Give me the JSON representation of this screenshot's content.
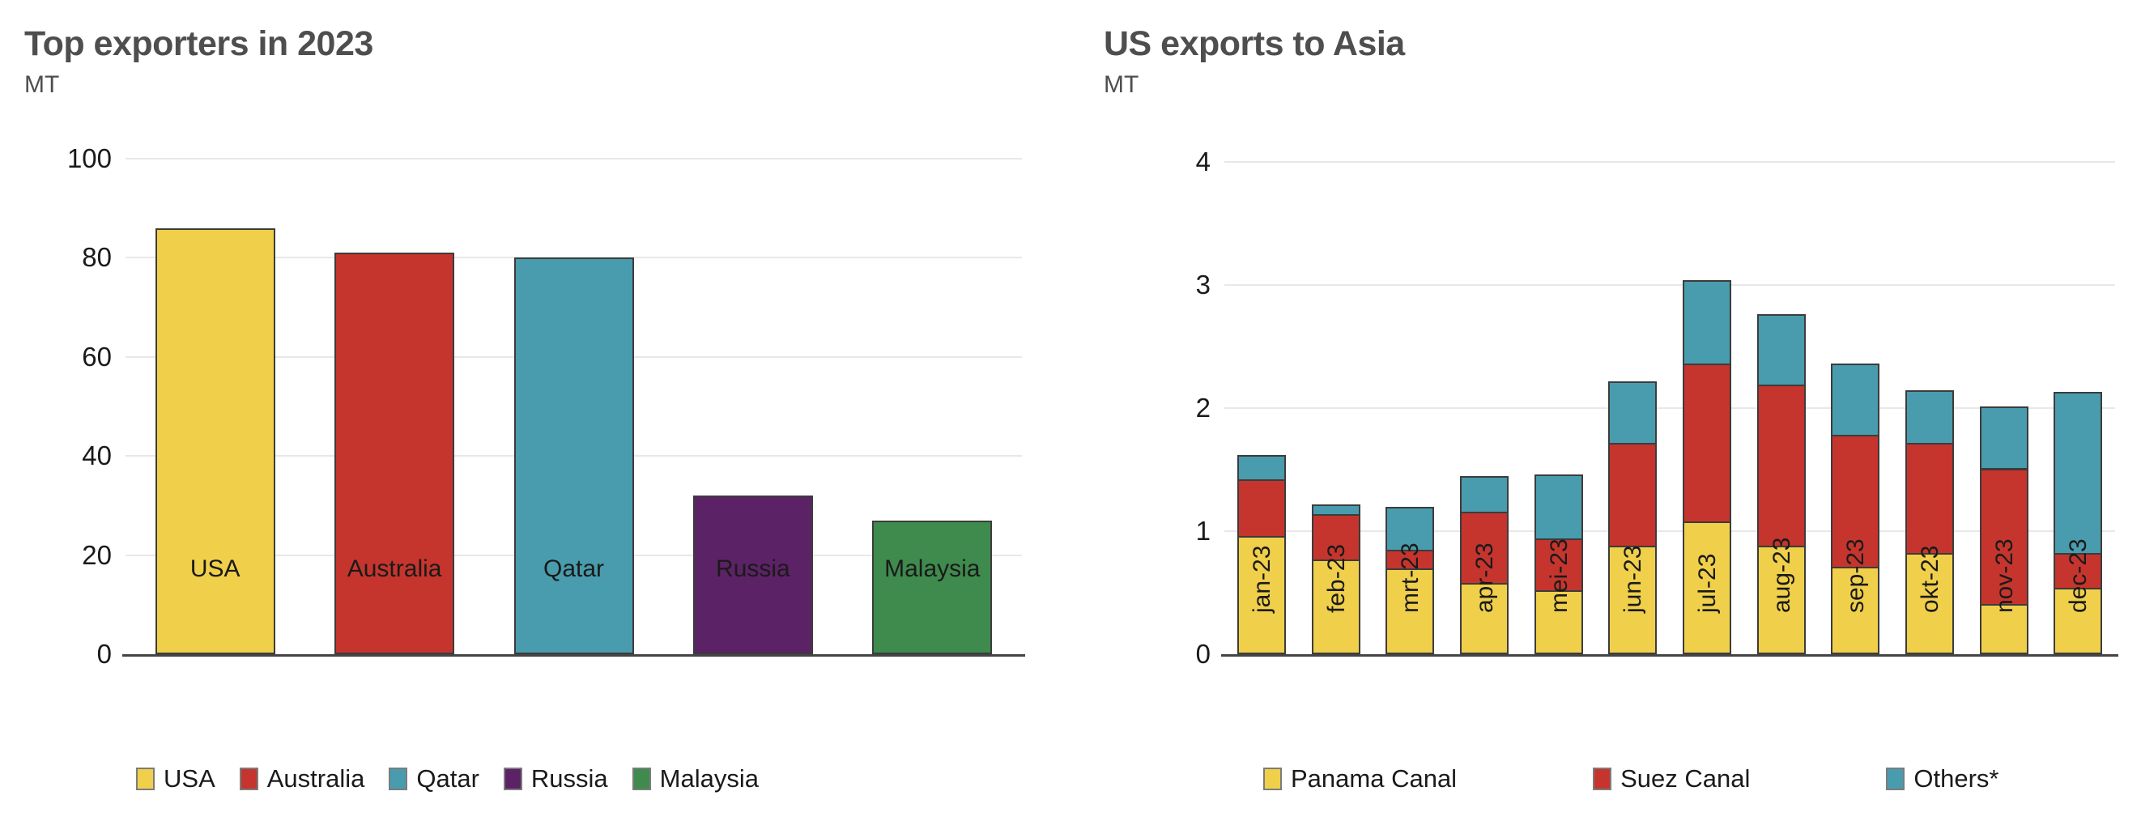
{
  "colors": {
    "background": "#FFFFFF",
    "title_text": "#4E4E4E",
    "axis_text": "#1A1A1A",
    "gridline": "#E8E8E8",
    "baseline": "#454545",
    "bar_border": "#3C3C3C",
    "legend_swatch_border": "#7C7C7C",
    "yellow": "#F0CF4A",
    "red": "#C5352D",
    "teal": "#489CAD",
    "purple": "#5C2266",
    "green": "#3F8A4D"
  },
  "chart_data": [
    {
      "type": "bar",
      "title": "Top exporters in 2023",
      "subtitle": "MT",
      "ylabel": "MT",
      "categories": [
        "USA",
        "Australia",
        "Qatar",
        "Russia",
        "Malaysia"
      ],
      "values": [
        86,
        81,
        80,
        32,
        27
      ],
      "bar_colors": [
        "#F0CF4A",
        "#C5352D",
        "#489CAD",
        "#5C2266",
        "#3F8A4D"
      ],
      "ylim": [
        0,
        100
      ],
      "yticks": [
        0,
        20,
        40,
        60,
        80,
        100
      ],
      "grid": true,
      "x_tick_rotation": 0,
      "legend_position": "bottom",
      "legend_items": [
        {
          "label": "USA",
          "color": "#F0CF4A"
        },
        {
          "label": "Australia",
          "color": "#C5352D"
        },
        {
          "label": "Qatar",
          "color": "#489CAD"
        },
        {
          "label": "Russia",
          "color": "#5C2266"
        },
        {
          "label": "Malaysia",
          "color": "#3F8A4D"
        }
      ]
    },
    {
      "type": "bar",
      "stacked": true,
      "title": "US exports to Asia",
      "subtitle": "MT",
      "ylabel": "MT",
      "categories": [
        "jan-23",
        "feb-23",
        "mrt-23",
        "apr-23",
        "mei-23",
        "jun-23",
        "jul-23",
        "aug-23",
        "sep-23",
        "okt-23",
        "nov-23",
        "dec-23"
      ],
      "series": [
        {
          "name": "Panama Canal",
          "color": "#F0CF4A",
          "values": [
            0.96,
            0.77,
            0.7,
            0.58,
            0.52,
            0.88,
            1.08,
            0.88,
            0.71,
            0.82,
            0.41,
            0.54
          ]
        },
        {
          "name": "Suez Canal",
          "color": "#C5352D",
          "values": [
            0.46,
            0.37,
            0.15,
            0.58,
            0.42,
            0.84,
            1.28,
            1.31,
            1.07,
            0.9,
            1.1,
            0.28
          ]
        },
        {
          "name": "Others*",
          "color": "#489CAD",
          "values": [
            0.2,
            0.08,
            0.35,
            0.29,
            0.52,
            0.5,
            0.68,
            0.57,
            0.58,
            0.43,
            0.5,
            1.31
          ]
        }
      ],
      "ylim": [
        0,
        4
      ],
      "yticks": [
        0,
        1,
        2,
        3,
        4
      ],
      "grid": true,
      "x_tick_rotation": 90,
      "legend_position": "bottom",
      "legend_items": [
        {
          "label": "Panama Canal",
          "color": "#F0CF4A"
        },
        {
          "label": "Suez Canal",
          "color": "#C5352D"
        },
        {
          "label": "Others*",
          "color": "#489CAD"
        }
      ]
    }
  ]
}
